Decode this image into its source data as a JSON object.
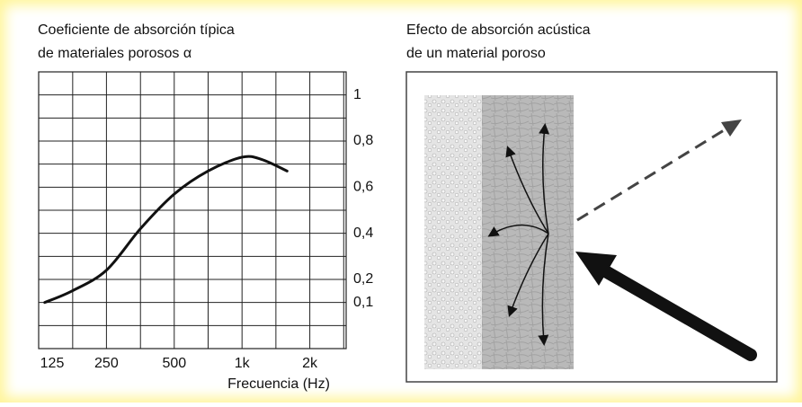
{
  "chart_data": {
    "type": "line",
    "title": [
      "Coeficiente de absorción típica",
      "de materiales porosos α"
    ],
    "x_label": "Frecuencia (Hz)",
    "x_log": true,
    "xlim": [
      125,
      2900
    ],
    "xticks": [
      125,
      250,
      500,
      {
        "value": 1000,
        "label": "1k"
      },
      {
        "value": 2000,
        "label": "2k"
      }
    ],
    "x_minor_ticks": [
      177,
      354,
      707,
      1414,
      2828
    ],
    "ylim": [
      -0.1,
      1.1
    ],
    "yticks": [
      {
        "value": 1,
        "label": "1"
      },
      {
        "value": 0.8,
        "label": "0,8"
      },
      {
        "value": 0.6,
        "label": "0,6"
      },
      {
        "value": 0.4,
        "label": "0,4"
      },
      {
        "value": 0.2,
        "label": "0,2"
      },
      {
        "value": 0.1,
        "label": "0,1"
      }
    ],
    "y_minor_ticks": [
      0,
      0.3,
      0.5,
      0.7,
      0.9
    ],
    "grid": true,
    "series": [
      {
        "color": "#111111",
        "x": [
          133,
          176,
          250,
          354,
          500,
          707,
          1000,
          1225,
          1585
        ],
        "values": [
          0.1,
          0.15,
          0.24,
          0.42,
          0.57,
          0.67,
          0.73,
          0.72,
          0.67
        ]
      }
    ]
  },
  "diagram": {
    "title": [
      "Efecto de absorción acústica",
      "de un material poroso"
    ]
  }
}
